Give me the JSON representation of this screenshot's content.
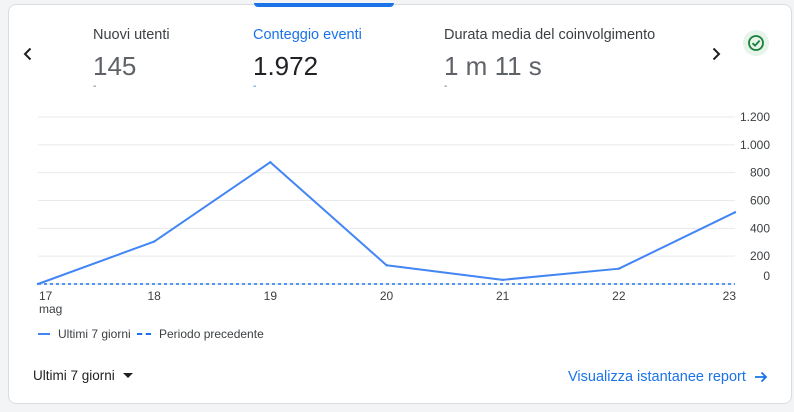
{
  "metrics": [
    {
      "label": "Nuovi utenti",
      "value": "145",
      "delta": "-",
      "active": false
    },
    {
      "label": "Conteggio eventi",
      "value": "1.972",
      "delta": "-",
      "active": true
    },
    {
      "label": "Durata media del coinvolgimento",
      "value": "1 m 11 s",
      "delta": "-",
      "active": false
    }
  ],
  "chart_data": {
    "type": "line",
    "categories": [
      "17",
      "18",
      "19",
      "20",
      "21",
      "22",
      "23"
    ],
    "x_sublabel": "mag",
    "series": [
      {
        "name": "Ultimi 7 giorni",
        "values": [
          0,
          305,
          875,
          135,
          30,
          110,
          515
        ],
        "color": "#4285f4",
        "style": "solid"
      },
      {
        "name": "Periodo precedente",
        "values": [
          0,
          0,
          0,
          0,
          0,
          0,
          0
        ],
        "color": "#1a73e8",
        "style": "dashed"
      }
    ],
    "y_ticks": [
      0,
      200,
      400,
      600,
      800,
      1000,
      1200
    ],
    "y_tick_labels": [
      "0",
      "200",
      "400",
      "600",
      "800",
      "1.000",
      "1.200"
    ],
    "ylim": [
      0,
      1200
    ],
    "grid": true,
    "legend_position": "bottom-left",
    "y_axis_side": "right"
  },
  "footer": {
    "range_label": "Ultimi 7 giorni",
    "report_link": "Visualizza istantanee report"
  },
  "colors": {
    "accent": "#1a73e8",
    "line": "#4285f4",
    "check": "#188038"
  }
}
